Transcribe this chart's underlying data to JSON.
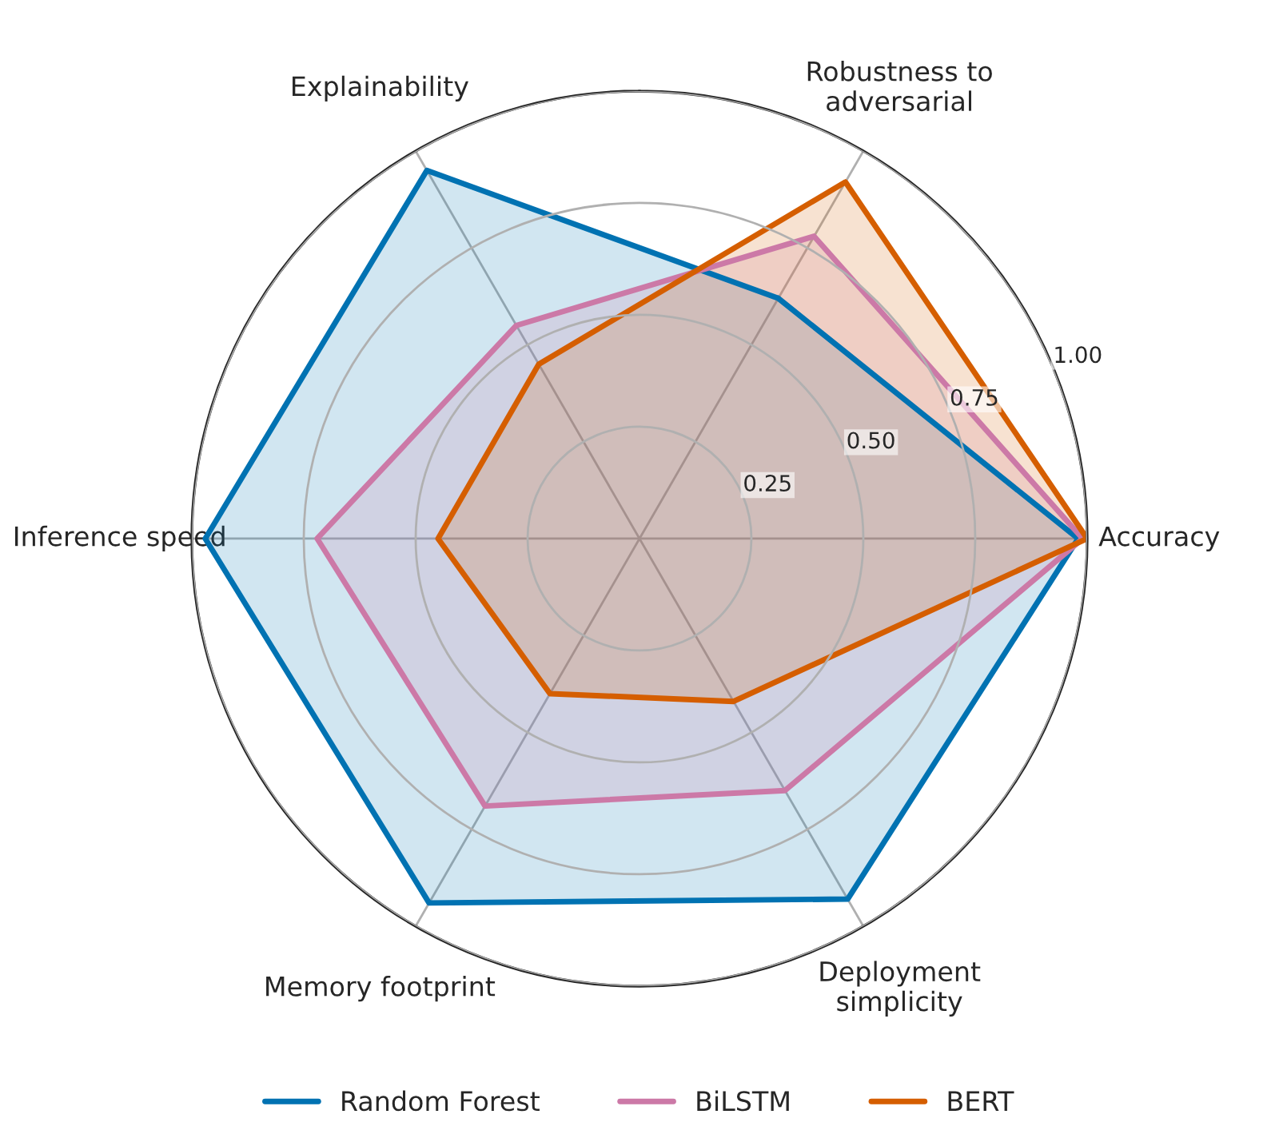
{
  "chart_data": {
    "type": "radar",
    "categories": [
      "Robustness to\nadversarial",
      "Accuracy",
      "Deployment\nsimplicity",
      "Memory footprint",
      "Inference speed",
      "Explainability"
    ],
    "series": [
      {
        "name": "Random Forest",
        "color": "#0072b2",
        "values": [
          0.62,
          0.98,
          0.93,
          0.94,
          0.97,
          0.95
        ]
      },
      {
        "name": "BiLSTM",
        "color": "#cc79a7",
        "values": [
          0.78,
          0.99,
          0.65,
          0.69,
          0.72,
          0.55
        ]
      },
      {
        "name": "BERT",
        "color": "#d55e00",
        "values": [
          0.92,
          1.0,
          0.42,
          0.4,
          0.45,
          0.45
        ]
      }
    ],
    "ylim": [
      0,
      1
    ],
    "yticks": [
      {
        "value": 0.25,
        "label": "0.25"
      },
      {
        "value": 0.5,
        "label": "0.50"
      },
      {
        "value": 0.75,
        "label": "0.75"
      },
      {
        "value": 1.0,
        "label": "1.00"
      }
    ],
    "grid": true,
    "legend": "bottom"
  }
}
